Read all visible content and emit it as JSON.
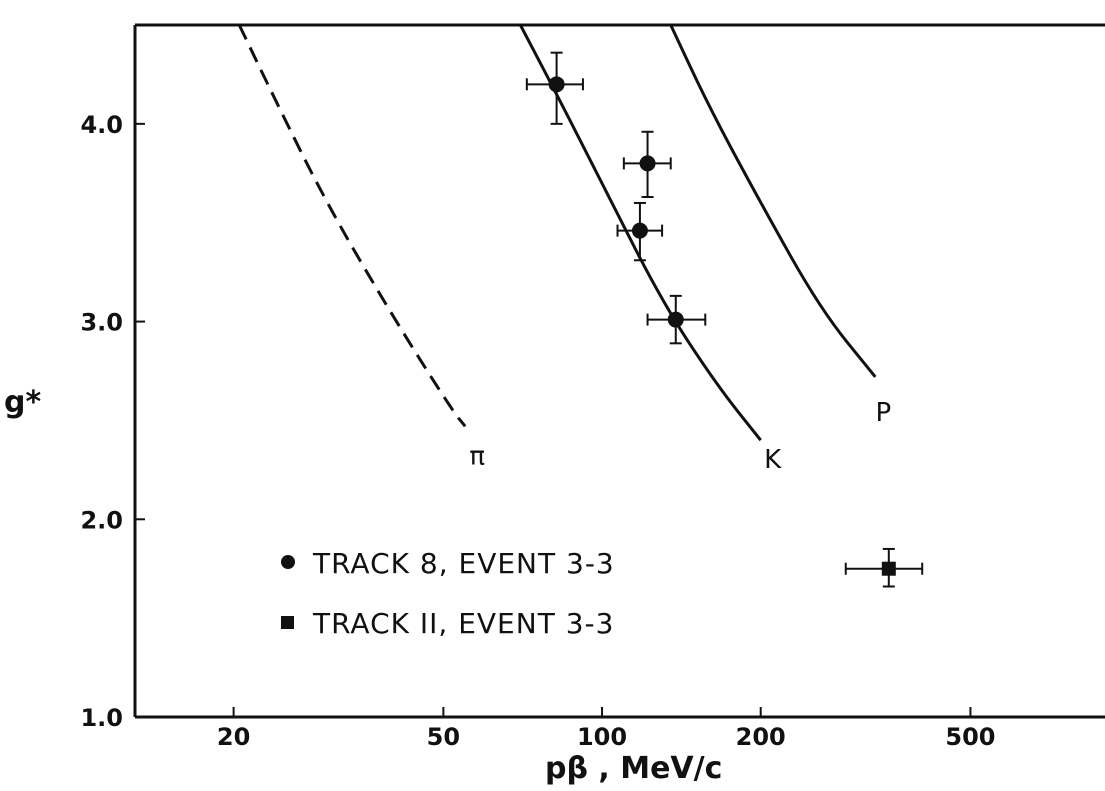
{
  "chart_data": {
    "type": "scatter",
    "title": "",
    "xlabel": "pβ , MeV/c",
    "ylabel": "g*",
    "xscale": "log",
    "xlim": [
      13,
      900
    ],
    "ylim": [
      1.0,
      4.5
    ],
    "xticks": [
      20,
      50,
      100,
      200,
      500
    ],
    "xtick_labels": [
      "20",
      "50",
      "100",
      "200",
      "500"
    ],
    "yticks": [
      1.0,
      2.0,
      3.0,
      4.0
    ],
    "ytick_labels": [
      "1.0",
      "2.0",
      "3.0",
      "4.0"
    ],
    "grid": false,
    "curves": [
      {
        "label": "π",
        "style": "dashed",
        "points": [
          [
            20.5,
            4.5
          ],
          [
            24,
            4.12
          ],
          [
            30,
            3.6
          ],
          [
            40,
            3.03
          ],
          [
            52,
            2.55
          ],
          [
            55,
            2.47
          ]
        ]
      },
      {
        "label": "K",
        "style": "solid",
        "points": [
          [
            70,
            4.5
          ],
          [
            82,
            4.15
          ],
          [
            100,
            3.7
          ],
          [
            130,
            3.1
          ],
          [
            165,
            2.68
          ],
          [
            200,
            2.4
          ]
        ]
      },
      {
        "label": "P",
        "style": "solid",
        "points": [
          [
            135,
            4.5
          ],
          [
            160,
            4.08
          ],
          [
            200,
            3.6
          ],
          [
            260,
            3.06
          ],
          [
            330,
            2.72
          ]
        ]
      }
    ],
    "series": [
      {
        "name": "TRACK 8, EVENT 3-3",
        "marker": "circle",
        "points": [
          {
            "x": 82,
            "y": 4.2,
            "xerr": [
              72,
              92
            ],
            "yerr": [
              4.0,
              4.36
            ]
          },
          {
            "x": 122,
            "y": 3.8,
            "xerr": [
              110,
              135
            ],
            "yerr": [
              3.63,
              3.96
            ]
          },
          {
            "x": 118,
            "y": 3.46,
            "xerr": [
              107,
              130
            ],
            "yerr": [
              3.31,
              3.6
            ]
          },
          {
            "x": 138,
            "y": 3.01,
            "xerr": [
              122,
              157
            ],
            "yerr": [
              2.89,
              3.13
            ]
          }
        ]
      },
      {
        "name": "TRACK II, EVENT 3-3",
        "marker": "square",
        "points": [
          {
            "x": 350,
            "y": 1.75,
            "xerr": [
              290,
              405
            ],
            "yerr": [
              1.66,
              1.85
            ]
          }
        ]
      }
    ],
    "legend_position": "lower-left"
  }
}
